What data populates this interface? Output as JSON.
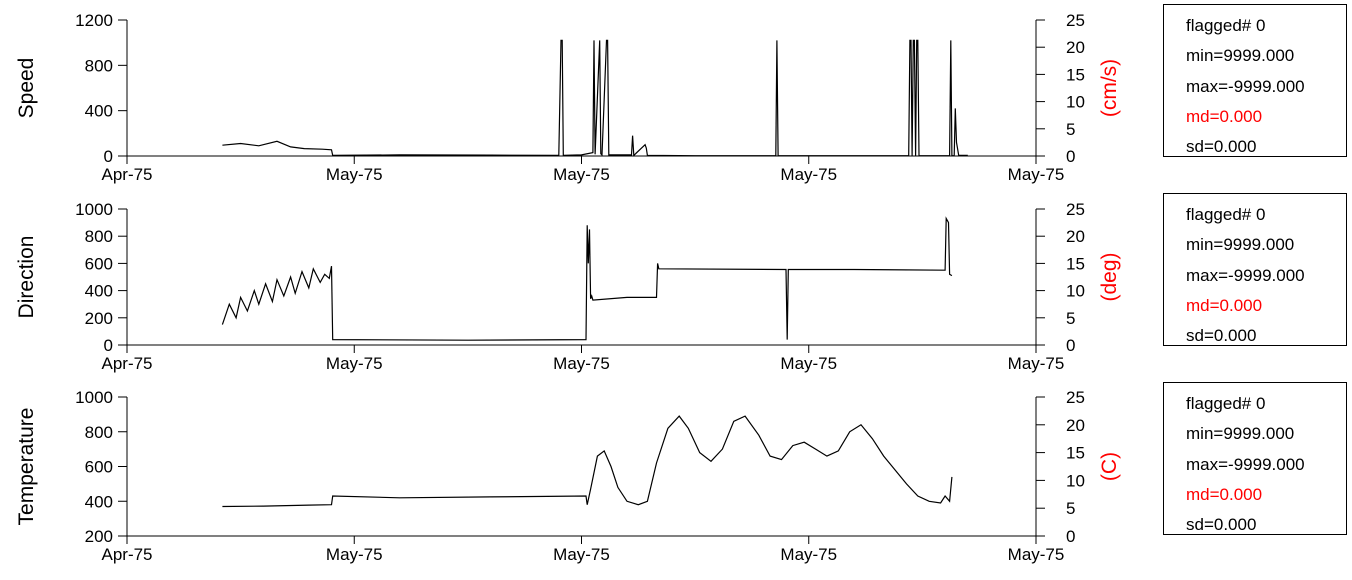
{
  "x_ticks": [
    "Apr-75",
    "May-75",
    "May-75",
    "May-75",
    "May-75"
  ],
  "colors": {
    "line": "#000000",
    "axis": "#000000",
    "right_label": "#ff0000",
    "md_text": "#ff0000"
  },
  "panels": [
    {
      "ylabel": "Speed",
      "right_label": "(cm/s)",
      "stats": {
        "flagged": "flagged# 0",
        "min": "min=9999.000",
        "max": "max=-9999.000",
        "md": "md=0.000",
        "sd": "sd=0.000"
      }
    },
    {
      "ylabel": "Direction",
      "right_label": "(deg)",
      "stats": {
        "flagged": "flagged# 0",
        "min": "min=9999.000",
        "max": "max=-9999.000",
        "md": "md=0.000",
        "sd": "sd=0.000"
      }
    },
    {
      "ylabel": "Temperature",
      "right_label": "(C)",
      "stats": {
        "flagged": "flagged# 0",
        "min": "min=9999.000",
        "max": "max=-9999.000",
        "md": "md=0.000",
        "sd": "sd=0.000"
      }
    }
  ],
  "chart_data": [
    {
      "type": "line",
      "ylabel": "Speed",
      "right_ylabel": "(cm/s)",
      "x_tick_labels": [
        "Apr-75",
        "May-75",
        "May-75",
        "May-75",
        "May-75"
      ],
      "xlim": [
        0,
        4
      ],
      "ylim": [
        0,
        1200
      ],
      "yticks": [
        0,
        400,
        800,
        1200
      ],
      "right_ylim": [
        0,
        25
      ],
      "right_yticks": [
        0,
        5,
        10,
        15,
        20,
        25
      ],
      "x": [
        0.42,
        0.5,
        0.58,
        0.66,
        0.72,
        0.78,
        0.86,
        0.9,
        0.905,
        1.2,
        1.6,
        1.9,
        1.91,
        1.915,
        1.92,
        2.0,
        2.05,
        2.055,
        2.06,
        2.08,
        2.085,
        2.09,
        2.11,
        2.115,
        2.12,
        2.22,
        2.225,
        2.23,
        2.28,
        2.285,
        2.29,
        2.5,
        2.855,
        2.86,
        2.865,
        3.2,
        3.44,
        3.445,
        3.45,
        3.455,
        3.46,
        3.465,
        3.47,
        3.475,
        3.48,
        3.485,
        3.49,
        3.62,
        3.625,
        3.63,
        3.64,
        3.645,
        3.65,
        3.66,
        3.7
      ],
      "y": [
        95,
        110,
        90,
        130,
        80,
        65,
        60,
        55,
        5,
        10,
        8,
        5,
        1020,
        1020,
        5,
        10,
        30,
        1020,
        15,
        1020,
        20,
        10,
        1020,
        1020,
        10,
        10,
        180,
        5,
        100,
        70,
        5,
        3,
        3,
        1020,
        3,
        3,
        3,
        1020,
        1020,
        3,
        1020,
        1020,
        3,
        1020,
        1020,
        3,
        3,
        3,
        1020,
        3,
        3,
        420,
        120,
        5,
        5
      ]
    },
    {
      "type": "line",
      "ylabel": "Direction",
      "right_ylabel": "(deg)",
      "x_tick_labels": [
        "Apr-75",
        "May-75",
        "May-75",
        "May-75",
        "May-75"
      ],
      "xlim": [
        0,
        4
      ],
      "ylim": [
        0,
        1000
      ],
      "yticks": [
        0,
        200,
        400,
        600,
        800,
        1000
      ],
      "right_ylim": [
        0,
        25
      ],
      "right_yticks": [
        0,
        5,
        10,
        15,
        20,
        25
      ],
      "x": [
        0.42,
        0.45,
        0.48,
        0.5,
        0.53,
        0.56,
        0.58,
        0.61,
        0.64,
        0.66,
        0.69,
        0.72,
        0.74,
        0.77,
        0.8,
        0.82,
        0.85,
        0.87,
        0.89,
        0.9,
        0.905,
        1.5,
        2.02,
        2.025,
        2.03,
        2.035,
        2.04,
        2.045,
        2.05,
        2.2,
        2.33,
        2.335,
        2.34,
        2.9,
        2.905,
        2.91,
        2.915,
        3.2,
        3.6,
        3.605,
        3.615,
        3.62,
        3.63
      ],
      "y": [
        150,
        300,
        200,
        350,
        250,
        400,
        300,
        450,
        320,
        480,
        360,
        500,
        380,
        540,
        420,
        560,
        460,
        520,
        490,
        580,
        40,
        35,
        40,
        880,
        600,
        850,
        340,
        360,
        330,
        350,
        350,
        600,
        560,
        555,
        40,
        555,
        555,
        555,
        550,
        930,
        900,
        520,
        510
      ]
    },
    {
      "type": "line",
      "ylabel": "Temperature",
      "right_ylabel": "(C)",
      "x_tick_labels": [
        "Apr-75",
        "May-75",
        "May-75",
        "May-75",
        "May-75"
      ],
      "xlim": [
        0,
        4
      ],
      "ylim": [
        200,
        1000
      ],
      "yticks": [
        200,
        400,
        600,
        800,
        1000
      ],
      "right_ylim": [
        0,
        25
      ],
      "right_yticks": [
        0,
        5,
        10,
        15,
        20,
        25
      ],
      "x": [
        0.42,
        0.6,
        0.8,
        0.9,
        0.905,
        1.2,
        1.6,
        2.02,
        2.025,
        2.04,
        2.07,
        2.1,
        2.13,
        2.16,
        2.2,
        2.25,
        2.29,
        2.33,
        2.38,
        2.43,
        2.47,
        2.52,
        2.57,
        2.62,
        2.67,
        2.72,
        2.78,
        2.83,
        2.88,
        2.93,
        2.98,
        3.03,
        3.08,
        3.13,
        3.18,
        3.23,
        3.28,
        3.33,
        3.38,
        3.43,
        3.48,
        3.53,
        3.58,
        3.6,
        3.62,
        3.63
      ],
      "y": [
        370,
        372,
        378,
        380,
        430,
        420,
        425,
        430,
        380,
        470,
        660,
        690,
        600,
        480,
        400,
        380,
        400,
        620,
        820,
        890,
        820,
        680,
        630,
        700,
        860,
        890,
        780,
        660,
        640,
        720,
        740,
        700,
        660,
        690,
        800,
        840,
        760,
        660,
        580,
        500,
        430,
        400,
        390,
        430,
        400,
        540
      ]
    }
  ]
}
